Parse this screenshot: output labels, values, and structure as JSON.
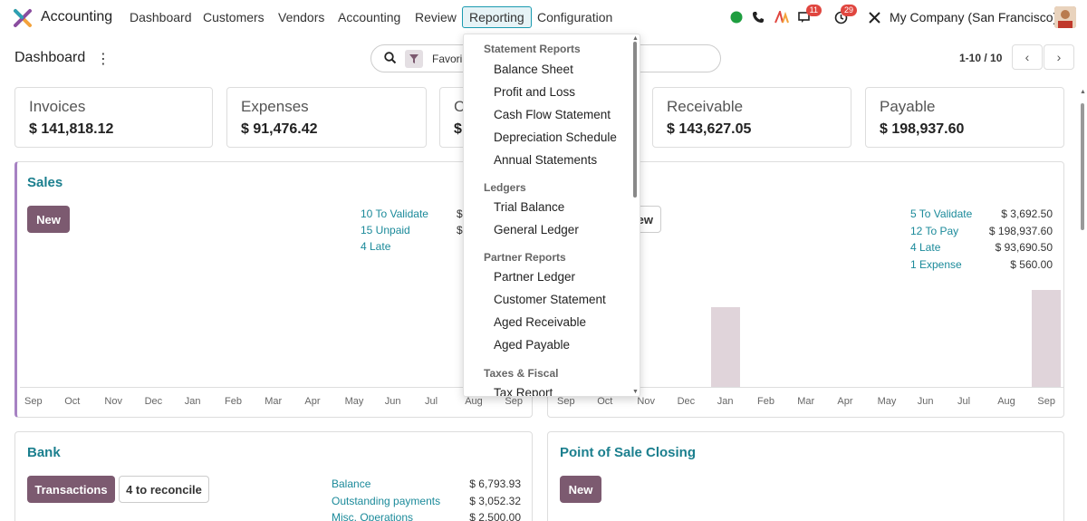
{
  "app": {
    "name": "Accounting"
  },
  "nav": [
    "Dashboard",
    "Customers",
    "Vendors",
    "Accounting",
    "Review",
    "Reporting",
    "Configuration"
  ],
  "systray": {
    "messages_badge": "11",
    "activity_badge": "29",
    "company": "My Company (San Francisco)"
  },
  "control": {
    "title": "Dashboard",
    "search_facet": "Favori",
    "pager": "1-10 / 10"
  },
  "kpis": [
    {
      "title": "Invoices",
      "value": "$ 141,818.12"
    },
    {
      "title": "Expenses",
      "value": "$ 91,476.42"
    },
    {
      "title": "C",
      "value": "$"
    },
    {
      "title": "Receivable",
      "value": "$ 143,627.05"
    },
    {
      "title": "Payable",
      "value": "$ 198,937.60"
    }
  ],
  "sales": {
    "title": "Sales",
    "new_label": "New",
    "links": [
      "10 To Validate",
      "15 Unpaid",
      "4 Late"
    ],
    "amounts": [
      "$",
      "$"
    ],
    "months": [
      "Sep",
      "Oct",
      "Nov",
      "Dec",
      "Jan",
      "Feb",
      "Mar",
      "Apr",
      "May",
      "Jun",
      "Jul",
      "Aug",
      "Sep"
    ]
  },
  "purchases": {
    "button_fragment": "ew",
    "links": [
      "5 To Validate",
      "12 To Pay",
      "4 Late",
      "1 Expense"
    ],
    "amounts": [
      "$ 3,692.50",
      "$ 198,937.60",
      "$ 93,690.50",
      "$ 560.00"
    ],
    "months": [
      "Sep",
      "Oct",
      "Nov",
      "Dec",
      "Jan",
      "Feb",
      "Mar",
      "Apr",
      "May",
      "Jun",
      "Jul",
      "Aug",
      "Sep"
    ],
    "bars": [
      {
        "month_index": 4,
        "level": 0.82
      },
      {
        "month_index": 12,
        "level": 1.0
      }
    ]
  },
  "bank": {
    "title": "Bank",
    "transactions_label": "Transactions",
    "reconcile_label": "4 to reconcile",
    "links": [
      "Balance",
      "Outstanding payments",
      "Misc. Operations"
    ],
    "amounts": [
      "$ 6,793.93",
      "$ 3,052.32",
      "$ 2,500.00"
    ]
  },
  "pos": {
    "title": "Point of Sale Closing",
    "new_label": "New"
  },
  "reporting_menu": {
    "sections": [
      {
        "header": "Statement Reports",
        "items": [
          "Balance Sheet",
          "Profit and Loss",
          "Cash Flow Statement",
          "Depreciation Schedule",
          "Annual Statements"
        ]
      },
      {
        "header": "Ledgers",
        "items": [
          "Trial Balance",
          "General Ledger"
        ]
      },
      {
        "header": "Partner Reports",
        "items": [
          "Partner Ledger",
          "Customer Statement",
          "Aged Receivable",
          "Aged Payable"
        ]
      },
      {
        "header": "Taxes & Fiscal",
        "items": [
          "Tax Report"
        ]
      }
    ]
  },
  "colors": {
    "accent": "#1b7f8e",
    "primary_button": "#7c5a70",
    "bar": "#e0d4da",
    "sales_border": "#a782c3"
  }
}
